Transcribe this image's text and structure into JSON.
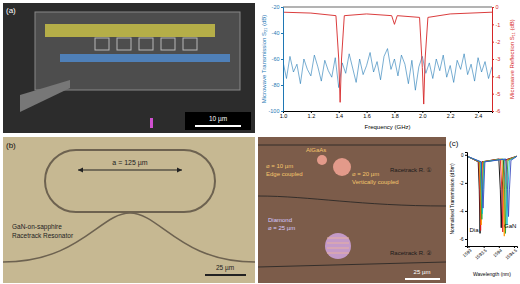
{
  "chart_data": [
    {
      "type": "line",
      "x_label": "Frequency (GHz)",
      "y_label": "Microwave Transmission S₂₁ (dB)",
      "y2_label": "Microwave Reflection S₁₁ (dB)",
      "xlim": [
        1.0,
        2.5
      ],
      "xticks": [
        {
          "value": 1.0,
          "label": "1.0"
        },
        {
          "value": 1.2,
          "label": "1.2"
        },
        {
          "value": 1.4,
          "label": "1.4"
        },
        {
          "value": 1.6,
          "label": "1.6"
        },
        {
          "value": 1.8,
          "label": "1.8"
        },
        {
          "value": 2.0,
          "label": "2.0"
        },
        {
          "value": 2.2,
          "label": "2.2"
        },
        {
          "value": 2.4,
          "label": "2.4"
        }
      ],
      "ylim": [
        -100,
        -20
      ],
      "yticks": [
        -100,
        -80,
        -60,
        -40,
        -20
      ],
      "y2lim": [
        -6,
        0
      ],
      "y2ticks": [
        -6,
        -5,
        -4,
        -3,
        -2,
        -1,
        0
      ],
      "series": [
        {
          "color": "#1f77b4",
          "axis": "y",
          "x": [
            1.0,
            1.025,
            1.05,
            1.075,
            1.1,
            1.125,
            1.15,
            1.175,
            1.2,
            1.225,
            1.25,
            1.275,
            1.3,
            1.325,
            1.35,
            1.375,
            1.4,
            1.425,
            1.45,
            1.475,
            1.5,
            1.525,
            1.55,
            1.575,
            1.6,
            1.625,
            1.65,
            1.675,
            1.7,
            1.725,
            1.75,
            1.775,
            1.8,
            1.825,
            1.85,
            1.875,
            1.9,
            1.925,
            1.95,
            1.975,
            2.0,
            2.025,
            2.05,
            2.075,
            2.1,
            2.125,
            2.15,
            2.175,
            2.2,
            2.225,
            2.25,
            2.275,
            2.3,
            2.325,
            2.35,
            2.375,
            2.4,
            2.425,
            2.45,
            2.475,
            2.5
          ],
          "values": [
            -62,
            -75,
            -58,
            -70,
            -64,
            -79,
            -60,
            -68,
            -73,
            -57,
            -66,
            -77,
            -61,
            -69,
            -74,
            -59,
            -82,
            -63,
            -71,
            -56,
            -67,
            -78,
            -60,
            -72,
            -65,
            -55,
            -70,
            -62,
            -76,
            -58,
            -52,
            -68,
            -60,
            -73,
            -57,
            -64,
            -79,
            -61,
            -84,
            -66,
            -58,
            -71,
            -63,
            -75,
            -60,
            -69,
            -57,
            -74,
            -65,
            -78,
            -61,
            -68,
            -56,
            -72,
            -64,
            -77,
            -59,
            -70,
            -62,
            -75,
            -66
          ]
        },
        {
          "color": "#d62728",
          "axis": "y2",
          "x": [
            1.0,
            1.2,
            1.38,
            1.4,
            1.41,
            1.42,
            1.44,
            1.6,
            1.78,
            1.8,
            1.82,
            1.98,
            2.0,
            2.01,
            2.02,
            2.04,
            2.2,
            2.5
          ],
          "values": [
            -0.3,
            -0.35,
            -0.5,
            -3.0,
            -5.5,
            -3.0,
            -0.5,
            -0.4,
            -0.5,
            -1.0,
            -0.5,
            -0.6,
            -3.5,
            -5.6,
            -3.0,
            -0.6,
            -0.4,
            -0.3
          ]
        }
      ]
    },
    {
      "type": "line",
      "x_label": "Wavelength (nm)",
      "y_label": "Normalised Transmission (dBm)",
      "xlim": [
        1592.95,
        1594.6
      ],
      "xticks": [
        1593,
        1593.5,
        1594,
        1594.5
      ],
      "ylim": [
        -6.5,
        0.2
      ],
      "yticks": [
        -6,
        -4,
        -2,
        0
      ],
      "annotations": [
        {
          "text": "Dia",
          "x": 1593.33,
          "y": -5.5
        },
        {
          "text": "GaN",
          "x": 1594.58,
          "y": -5.2
        }
      ],
      "series": [
        {
          "color": "#000000",
          "x": [
            1592.95,
            1593.32,
            1593.355,
            1593.38,
            1593.405,
            1593.44,
            1594.0,
            1594.05,
            1594.08,
            1594.11,
            1594.16,
            1594.6
          ],
          "values": [
            -0.1,
            -0.5,
            -2.5,
            -5.6,
            -2.5,
            -0.5,
            -0.3,
            -2.5,
            -5.2,
            -2.5,
            -0.4,
            -0.1
          ]
        },
        {
          "color": "#e41a1c",
          "x": [
            1592.95,
            1593.34,
            1593.375,
            1593.4,
            1593.425,
            1593.46,
            1594.05,
            1594.1,
            1594.13,
            1594.16,
            1594.21,
            1594.6
          ],
          "values": [
            -0.1,
            -0.5,
            -2.5,
            -5.4,
            -2.5,
            -0.5,
            -0.3,
            -2.5,
            -5.5,
            -2.5,
            -0.4,
            -0.1
          ]
        },
        {
          "color": "#ff9900",
          "x": [
            1592.95,
            1593.36,
            1593.395,
            1593.42,
            1593.445,
            1593.48,
            1594.1,
            1594.15,
            1594.18,
            1594.21,
            1594.26,
            1594.6
          ],
          "values": [
            -0.1,
            -0.5,
            -2.5,
            -5.0,
            -2.5,
            -0.5,
            -0.3,
            -2.5,
            -5.8,
            -2.5,
            -0.4,
            -0.1
          ]
        },
        {
          "color": "#33a02c",
          "x": [
            1592.95,
            1593.38,
            1593.415,
            1593.44,
            1593.465,
            1593.5,
            1594.14,
            1594.19,
            1594.22,
            1594.25,
            1594.3,
            1594.6
          ],
          "values": [
            -0.1,
            -0.5,
            -2.5,
            -4.6,
            -2.5,
            -0.5,
            -0.3,
            -2.5,
            -5.6,
            -2.5,
            -0.4,
            -0.1
          ]
        },
        {
          "color": "#17becf",
          "x": [
            1592.95,
            1593.4,
            1593.435,
            1593.46,
            1593.485,
            1593.52,
            1594.19,
            1594.24,
            1594.27,
            1594.3,
            1594.35,
            1594.6
          ],
          "values": [
            -0.1,
            -0.5,
            -2.5,
            -4.2,
            -2.5,
            -0.5,
            -0.3,
            -2.5,
            -5.0,
            -2.5,
            -0.4,
            -0.1
          ]
        },
        {
          "color": "#3b4cc0",
          "x": [
            1592.95,
            1593.42,
            1593.455,
            1593.48,
            1593.505,
            1593.54,
            1594.24,
            1594.29,
            1594.32,
            1594.35,
            1594.4,
            1594.6
          ],
          "values": [
            -0.1,
            -0.5,
            -2.5,
            -3.8,
            -2.5,
            -0.5,
            -0.3,
            -2.5,
            -4.4,
            -2.5,
            -0.4,
            -0.1
          ]
        }
      ]
    }
  ],
  "figure": {
    "panel_labels": [
      "(a)",
      "(b)",
      "(c)"
    ],
    "sem_image": {
      "scale_bar": "10 µm"
    },
    "racetrack_image": {
      "dimension": "a = 125 µm",
      "caption": [
        "GaN-on-sapphire",
        "Racetrack Resonator"
      ],
      "scale_bar": "25 µm"
    },
    "hybrid_image": {
      "annotations": [
        "AlGaAs",
        "⌀ = 10 µm",
        "Edge coupled",
        "⌀ = 20 µm",
        "Vertically coupled",
        "Diamond",
        "⌀ = 25 µm",
        "Racetrack R. ①",
        "Racetrack R. ②"
      ],
      "scale_bar": "25 µm"
    }
  }
}
